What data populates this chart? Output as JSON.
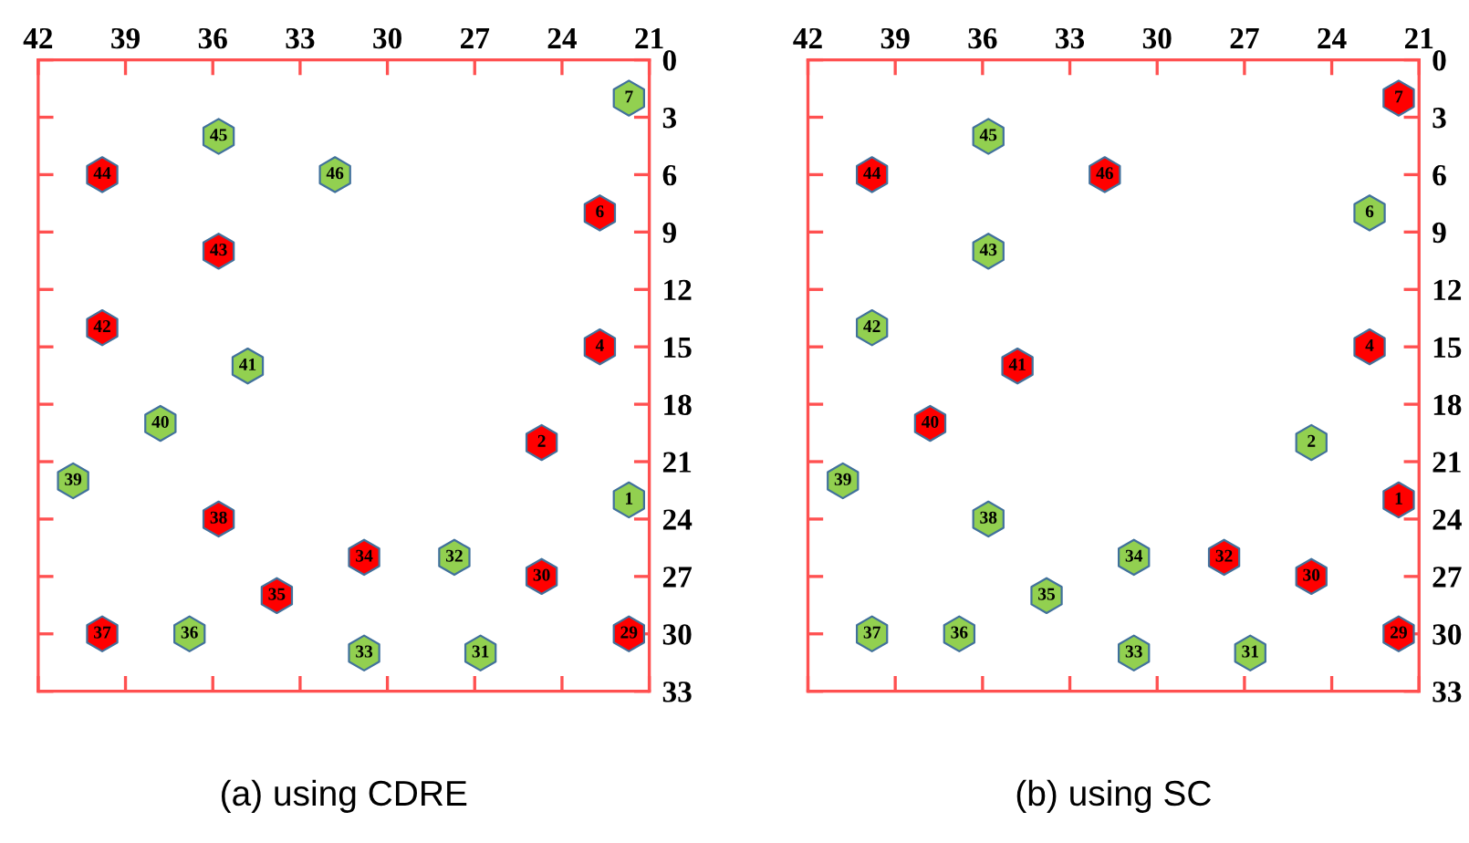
{
  "chart_data": [
    {
      "type": "scatter",
      "title": "(a) using CDRE",
      "series": [
        {
          "color": "#ff0000",
          "x": [
            39.8,
            22.7,
            35.8,
            39.8,
            22.7,
            24.7,
            35.8,
            30.8,
            24.7,
            33.8,
            39.8,
            21.7
          ],
          "values": [
            6,
            8,
            10,
            14,
            15,
            20,
            24,
            26,
            27,
            28,
            30,
            30
          ]
        },
        {
          "color": "#92d050",
          "x": [
            21.7,
            35.8,
            31.8,
            34.8,
            37.8,
            40.8,
            21.7,
            27.7,
            36.8,
            30.8,
            26.8
          ],
          "values": [
            2,
            4,
            6,
            16,
            19,
            22,
            23,
            26,
            30,
            31,
            31
          ]
        }
      ],
      "annotations": [
        {
          "text": "44",
          "x": 39.8,
          "y": 6
        },
        {
          "text": "6",
          "x": 22.7,
          "y": 8
        },
        {
          "text": "43",
          "x": 35.8,
          "y": 10
        },
        {
          "text": "42",
          "x": 39.8,
          "y": 14
        },
        {
          "text": "4",
          "x": 22.7,
          "y": 15
        },
        {
          "text": "2",
          "x": 24.7,
          "y": 20
        },
        {
          "text": "38",
          "x": 35.8,
          "y": 24
        },
        {
          "text": "34",
          "x": 30.8,
          "y": 26
        },
        {
          "text": "30",
          "x": 24.7,
          "y": 27
        },
        {
          "text": "35",
          "x": 33.8,
          "y": 28
        },
        {
          "text": "37",
          "x": 39.8,
          "y": 30
        },
        {
          "text": "29",
          "x": 21.7,
          "y": 30
        },
        {
          "text": "7",
          "x": 21.7,
          "y": 2
        },
        {
          "text": "45",
          "x": 35.8,
          "y": 4
        },
        {
          "text": "46",
          "x": 31.8,
          "y": 6
        },
        {
          "text": "41",
          "x": 34.8,
          "y": 16
        },
        {
          "text": "40",
          "x": 37.8,
          "y": 19
        },
        {
          "text": "39",
          "x": 40.8,
          "y": 22
        },
        {
          "text": "1",
          "x": 21.7,
          "y": 23
        },
        {
          "text": "32",
          "x": 27.7,
          "y": 26
        },
        {
          "text": "36",
          "x": 36.8,
          "y": 30
        },
        {
          "text": "33",
          "x": 30.8,
          "y": 31
        },
        {
          "text": "31",
          "x": 26.8,
          "y": 31
        }
      ],
      "xlim": [
        42,
        21
      ],
      "xticks": [
        42,
        39,
        36,
        33,
        30,
        27,
        24,
        21
      ],
      "ylim": [
        33,
        0
      ],
      "yticks": [
        0,
        3,
        6,
        9,
        12,
        15,
        18,
        21,
        24,
        27,
        30,
        33
      ],
      "grid": false,
      "legend": false
    },
    {
      "type": "scatter",
      "title": "(b) using SC",
      "series": [
        {
          "color": "#ff0000",
          "x": [
            21.7,
            39.8,
            31.8,
            22.7,
            34.8,
            37.8,
            21.7,
            27.7,
            24.7,
            21.7
          ],
          "values": [
            2,
            6,
            6,
            15,
            16,
            19,
            23,
            26,
            27,
            30
          ]
        },
        {
          "color": "#92d050",
          "x": [
            35.8,
            22.7,
            35.8,
            39.8,
            24.7,
            40.8,
            35.8,
            30.8,
            33.8,
            39.8,
            36.8,
            30.8,
            26.8
          ],
          "values": [
            4,
            8,
            10,
            14,
            20,
            22,
            24,
            26,
            28,
            30,
            30,
            31,
            31
          ]
        }
      ],
      "annotations": [
        {
          "text": "7",
          "x": 21.7,
          "y": 2
        },
        {
          "text": "44",
          "x": 39.8,
          "y": 6
        },
        {
          "text": "46",
          "x": 31.8,
          "y": 6
        },
        {
          "text": "4",
          "x": 22.7,
          "y": 15
        },
        {
          "text": "41",
          "x": 34.8,
          "y": 16
        },
        {
          "text": "40",
          "x": 37.8,
          "y": 19
        },
        {
          "text": "1",
          "x": 21.7,
          "y": 23
        },
        {
          "text": "32",
          "x": 27.7,
          "y": 26
        },
        {
          "text": "30",
          "x": 24.7,
          "y": 27
        },
        {
          "text": "29",
          "x": 21.7,
          "y": 30
        },
        {
          "text": "45",
          "x": 35.8,
          "y": 4
        },
        {
          "text": "6",
          "x": 22.7,
          "y": 8
        },
        {
          "text": "43",
          "x": 35.8,
          "y": 10
        },
        {
          "text": "42",
          "x": 39.8,
          "y": 14
        },
        {
          "text": "2",
          "x": 24.7,
          "y": 20
        },
        {
          "text": "39",
          "x": 40.8,
          "y": 22
        },
        {
          "text": "38",
          "x": 35.8,
          "y": 24
        },
        {
          "text": "34",
          "x": 30.8,
          "y": 26
        },
        {
          "text": "35",
          "x": 33.8,
          "y": 28
        },
        {
          "text": "37",
          "x": 39.8,
          "y": 30
        },
        {
          "text": "36",
          "x": 36.8,
          "y": 30
        },
        {
          "text": "33",
          "x": 30.8,
          "y": 31
        },
        {
          "text": "31",
          "x": 26.8,
          "y": 31
        }
      ],
      "xlim": [
        42,
        21
      ],
      "xticks": [
        42,
        39,
        36,
        33,
        30,
        27,
        24,
        21
      ],
      "ylim": [
        33,
        0
      ],
      "yticks": [
        0,
        3,
        6,
        9,
        12,
        15,
        18,
        21,
        24,
        27,
        30,
        33
      ],
      "grid": false,
      "legend": false
    }
  ]
}
